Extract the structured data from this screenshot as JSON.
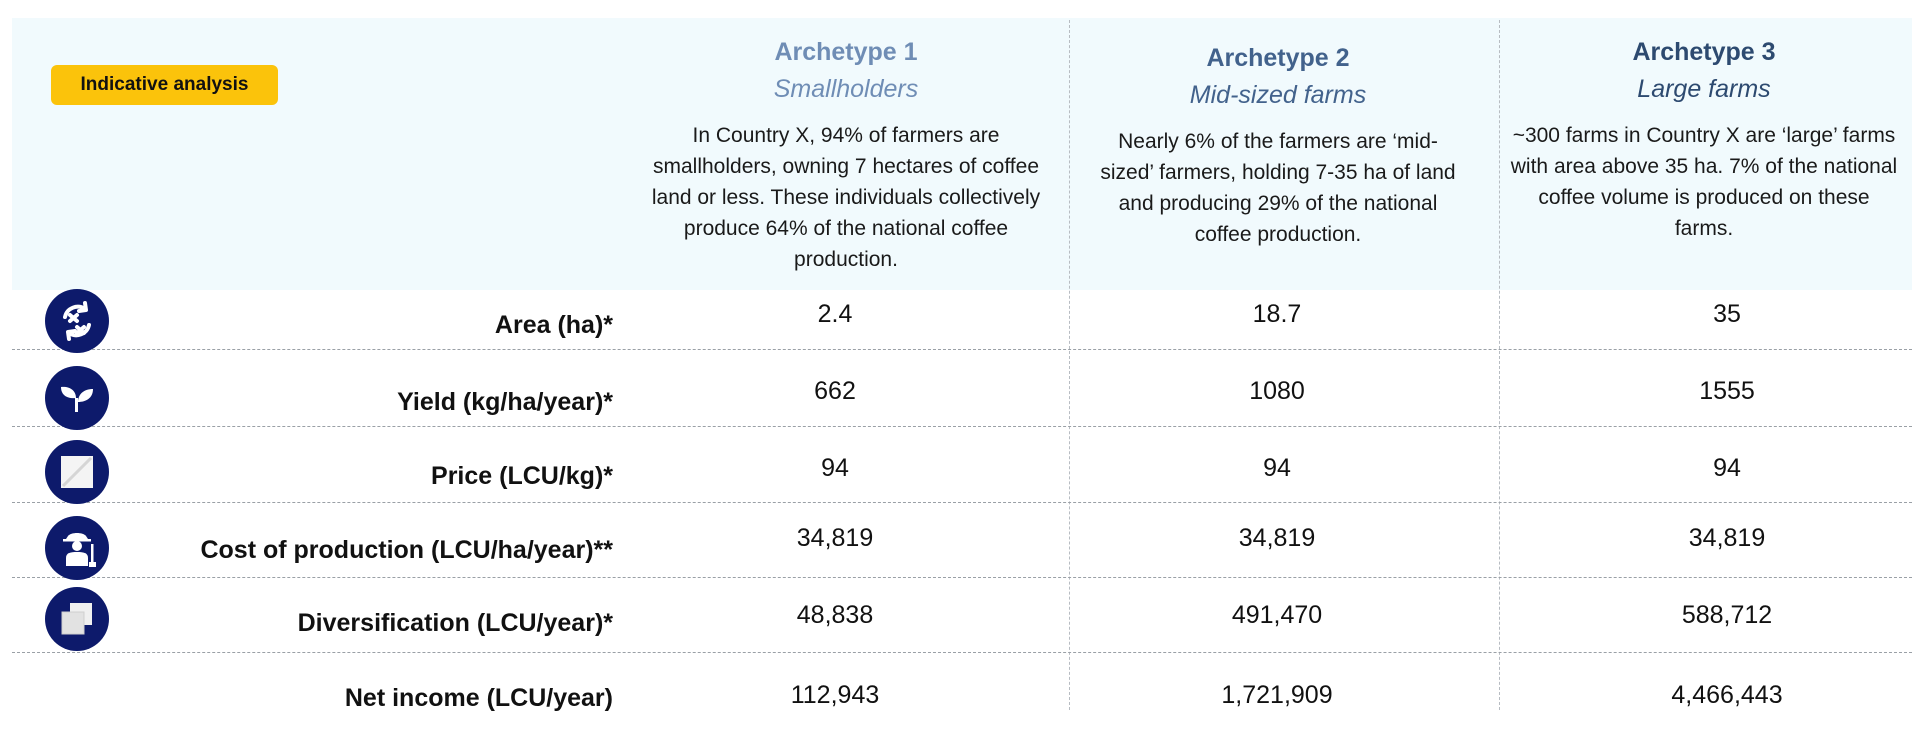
{
  "badge": "Indicative analysis",
  "archetypes": [
    {
      "title": "Archetype 1",
      "subtitle": "Smallholders",
      "description": "In Country X, 94% of farmers are smallholders, owning 7 hectares of coffee land or less. These individuals collectively produce 64% of the national coffee production."
    },
    {
      "title": "Archetype 2",
      "subtitle": "Mid-sized farms",
      "description": "Nearly 6% of the farmers are ‘mid-sized’ farmers, holding 7-35 ha of land and producing 29% of the national coffee production."
    },
    {
      "title": "Archetype 3",
      "subtitle": "Large farms",
      "description": "~300 farms in Country X are ‘large’ farms with area above 35 ha. 7% of the national coffee volume is produced on these farms."
    }
  ],
  "rows": [
    {
      "label": "Area (ha)*",
      "icon": "recycle-arrows-icon",
      "values": [
        "2.4",
        "18.7",
        "35"
      ]
    },
    {
      "label": "Yield (kg/ha/year)*",
      "icon": "sprout-icon",
      "values": [
        "662",
        "1080",
        "1555"
      ]
    },
    {
      "label": "Price (LCU/kg)*",
      "icon": "price-tag-icon",
      "values": [
        "94",
        "94",
        "94"
      ]
    },
    {
      "label": "Cost of production (LCU/ha/year)**",
      "icon": "farmer-icon",
      "values": [
        "34,819",
        "34,819",
        "34,819"
      ]
    },
    {
      "label": "Diversification (LCU/year)*",
      "icon": "stacked-layers-icon",
      "values": [
        "48,838",
        "491,470",
        "588,712"
      ]
    },
    {
      "label": "Net income (LCU/year)",
      "icon": "",
      "values": [
        "112,943",
        "1,721,909",
        "4,466,443"
      ]
    }
  ],
  "colors": {
    "badge": "#fbc30b",
    "icon_bg": "#0d1a6b",
    "header_bg": "#f1fafd",
    "archetype_1": "#6f8db5",
    "archetype_2": "#42628c",
    "archetype_3": "#2d4a70"
  }
}
